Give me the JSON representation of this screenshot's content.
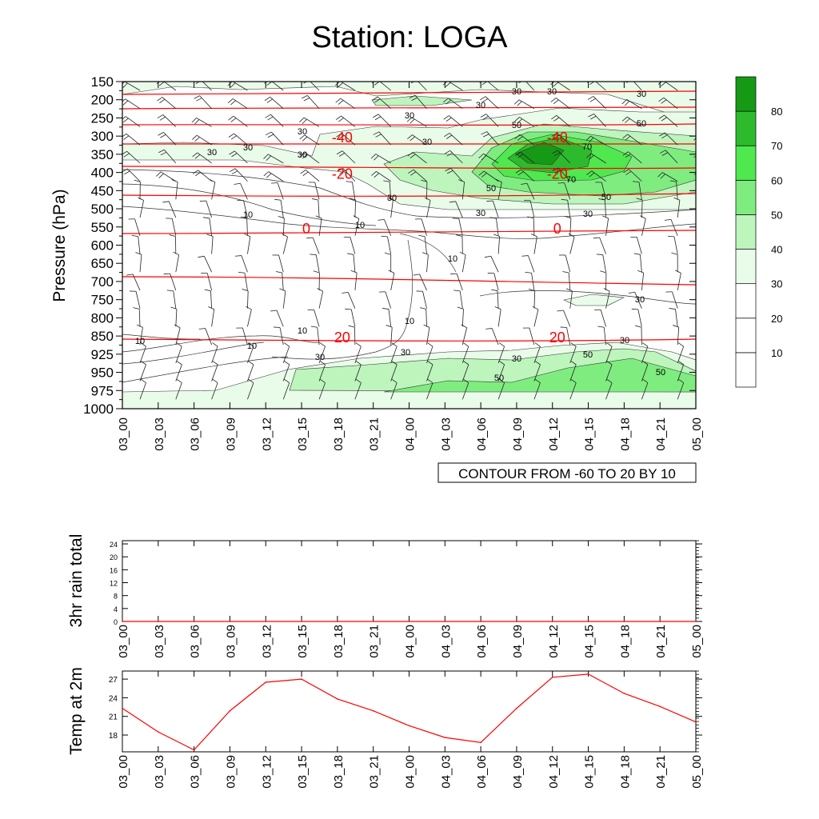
{
  "title": "Station: LOGA",
  "time_labels": [
    "03_00",
    "03_03",
    "03_06",
    "03_09",
    "03_12",
    "03_15",
    "03_18",
    "03_21",
    "04_00",
    "04_03",
    "04_06",
    "04_09",
    "04_12",
    "04_15",
    "04_18",
    "04_21",
    "05_00"
  ],
  "colors": {
    "red": "#ff0000",
    "greens": [
      "#ffffff",
      "#ffffff",
      "#ffffff",
      "#e9fbe9",
      "#bdf5bd",
      "#7fec7f",
      "#4fe84f",
      "#2dbb2d",
      "#169a16"
    ]
  },
  "chart_data": [
    {
      "type": "contour",
      "name": "cross-section",
      "title": "Station: LOGA",
      "ylabel": "Pressure (hPa)",
      "pressure_levels": [
        150,
        200,
        250,
        300,
        350,
        400,
        450,
        500,
        550,
        600,
        650,
        700,
        750,
        800,
        850,
        925,
        950,
        975,
        1000
      ],
      "ylim": [
        150,
        1000
      ],
      "info_label": "CONTOUR FROM -60 TO 20 BY 10",
      "temperature_labels": [
        {
          "value": "-40",
          "time": "03_18",
          "pressure": "300"
        },
        {
          "value": "-40",
          "time": "04_12",
          "pressure": "300"
        },
        {
          "value": "-20",
          "time": "03_18",
          "pressure": "400"
        },
        {
          "value": "-20",
          "time": "04_12",
          "pressure": "400"
        },
        {
          "value": "0",
          "time": "03_15",
          "pressure": "550"
        },
        {
          "value": "0",
          "time": "04_12",
          "pressure": "550"
        },
        {
          "value": "20",
          "time": "03_18",
          "pressure": "850"
        },
        {
          "value": "20",
          "time": "04_12",
          "pressure": "850"
        }
      ],
      "humidity_labels": [
        "10",
        "30",
        "50",
        "70"
      ],
      "colorbar": {
        "ticks": [
          "10",
          "20",
          "30",
          "40",
          "50",
          "60",
          "70",
          "80"
        ]
      }
    },
    {
      "type": "line",
      "name": "rain",
      "ylabel": "3hr rain total",
      "y_ticks": [
        "0",
        "4",
        "8",
        "12",
        "16",
        "20",
        "24"
      ],
      "ylim": [
        0,
        25
      ],
      "values": [
        0,
        0,
        0,
        0,
        0,
        0,
        0,
        0,
        0,
        0,
        0,
        0,
        0,
        0,
        0,
        0,
        0
      ]
    },
    {
      "type": "line",
      "name": "temp2m",
      "ylabel": "Temp at 2m",
      "y_ticks": [
        "18",
        "21",
        "24",
        "27"
      ],
      "ylim": [
        15.3,
        28.3
      ],
      "values": [
        22.3,
        18.5,
        15.6,
        21.9,
        26.5,
        27,
        23.8,
        21.9,
        19.5,
        17.6,
        16.8,
        22.3,
        27.3,
        27.8,
        24.7,
        22.6,
        20.1
      ]
    }
  ]
}
